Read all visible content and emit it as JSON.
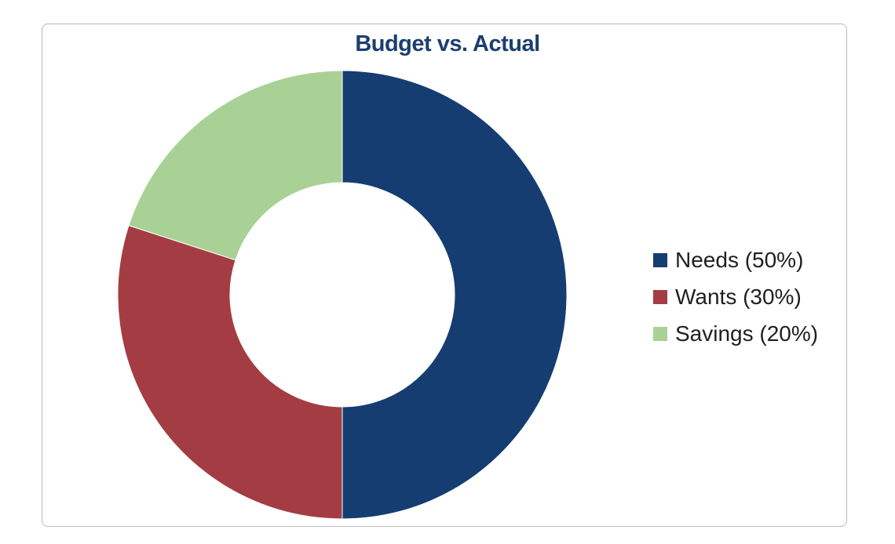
{
  "chart_data": {
    "type": "pie",
    "variant": "donut",
    "title": "Budget vs. Actual",
    "categories": [
      "Needs (50%)",
      "Wants (30%)",
      "Savings (20%)"
    ],
    "values": [
      50,
      30,
      20
    ],
    "colors": [
      "#153d71",
      "#a33d43",
      "#a9d196"
    ],
    "legend": "right",
    "start": "top",
    "direction": "clockwise"
  }
}
